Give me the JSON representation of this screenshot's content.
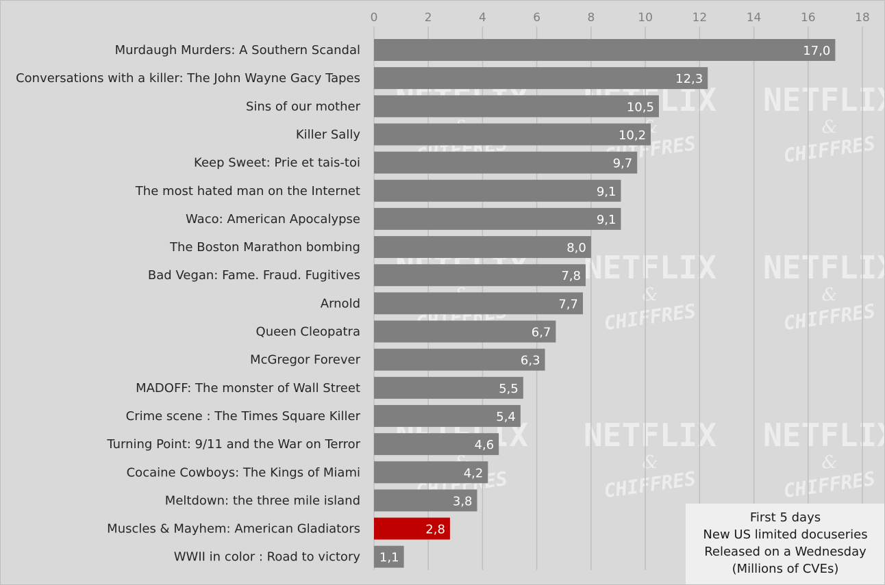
{
  "chart_data": {
    "type": "bar",
    "orientation": "horizontal",
    "categories": [
      "Murdaugh Murders: A Southern Scandal",
      "Conversations with a killer: The John Wayne Gacy Tapes",
      "Sins of our mother",
      "Killer Sally",
      "Keep Sweet: Prie et tais-toi",
      "The most hated man on the Internet",
      "Waco: American Apocalypse",
      "The Boston Marathon bombing",
      "Bad Vegan: Fame. Fraud. Fugitives",
      "Arnold",
      "Queen Cleopatra",
      "McGregor Forever",
      "MADOFF: The monster of Wall Street",
      "Crime scene : The Times Square Killer",
      "Turning Point: 9/11 and the War on Terror",
      "Cocaine Cowboys: The Kings of Miami",
      "Meltdown: the three mile island",
      "Muscles & Mayhem: American Gladiators",
      "WWII in color : Road to victory"
    ],
    "values": [
      17.0,
      12.3,
      10.5,
      10.2,
      9.7,
      9.1,
      9.1,
      8.0,
      7.8,
      7.7,
      6.7,
      6.3,
      5.5,
      5.4,
      4.6,
      4.2,
      3.8,
      2.8,
      1.1
    ],
    "value_labels": [
      "17,0",
      "12,3",
      "10,5",
      "10,2",
      "9,7",
      "9,1",
      "9,1",
      "8,0",
      "7,8",
      "7,7",
      "6,7",
      "6,3",
      "5,5",
      "5,4",
      "4,6",
      "4,2",
      "3,8",
      "2,8",
      "1,1"
    ],
    "highlight_index": 17,
    "xlim": [
      0,
      18
    ],
    "xticks": [
      0,
      2,
      4,
      6,
      8,
      10,
      12,
      14,
      16,
      18
    ],
    "x_axis_position": "top",
    "grid": true,
    "title": "",
    "xlabel": "",
    "ylabel": "",
    "legend_placement": "bottom-right",
    "colors": {
      "background": "#d9d9d9",
      "bar": "#7f7f7f",
      "highlight_bar": "#c00000",
      "grid": "#bfbfbf",
      "value_text": "#ffffff",
      "category_text": "#262626",
      "tick_text": "#7f7f7f",
      "legend_background": "#efefef"
    }
  },
  "legend": {
    "lines": [
      "First 5 days",
      "New US limited docuseries",
      "Released on a Wednesday",
      "(Millions of CVEs)"
    ]
  },
  "watermark": {
    "title": "NETFLIX",
    "amp": "&",
    "subtitle": "CHIFFRES"
  }
}
